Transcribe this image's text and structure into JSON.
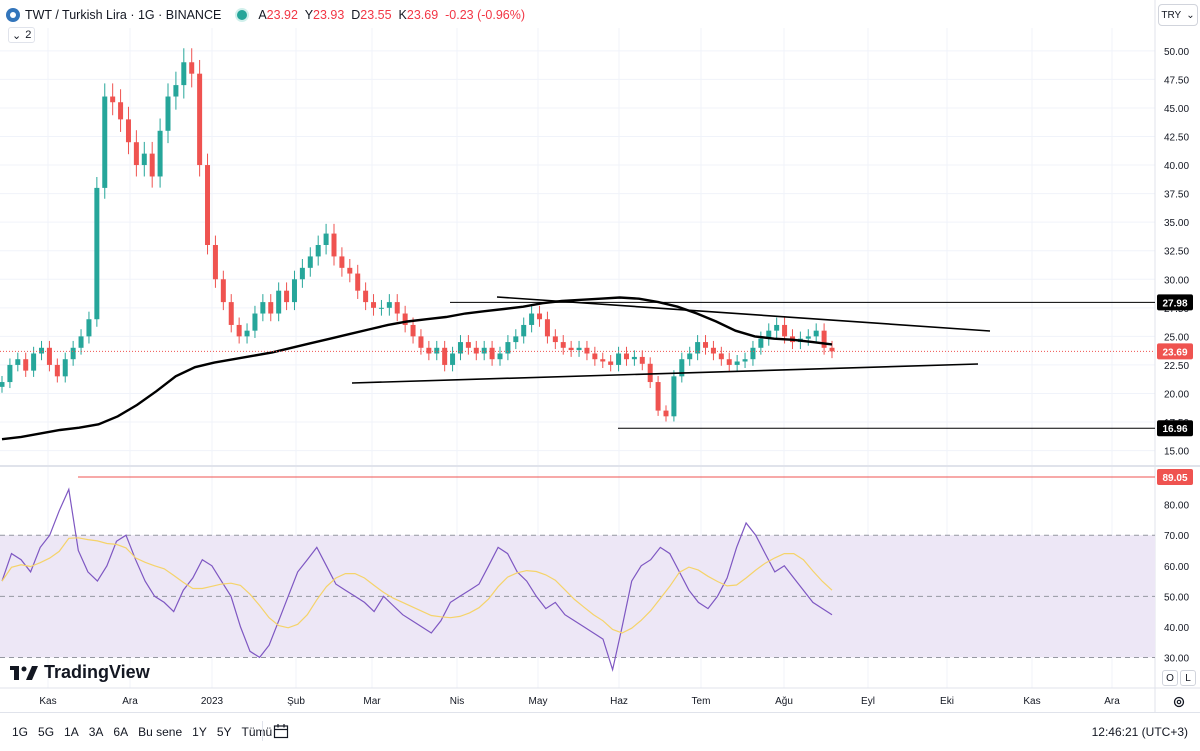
{
  "header": {
    "symbol": "TWT / Turkish Lira · 1G · BINANCE",
    "o_label": "A",
    "o_value": "23.92",
    "h_label": "Y",
    "h_value": "23.93",
    "l_label": "D",
    "l_value": "23.55",
    "c_label": "K",
    "c_value": "23.69",
    "change": "-0.23 (-0.96%)",
    "indicator_count": "2",
    "currency": "TRY"
  },
  "chart_data": {
    "type": "candlestick",
    "price_axis": {
      "ticks": [
        "50.00",
        "47.50",
        "45.00",
        "42.50",
        "40.00",
        "37.50",
        "35.00",
        "32.50",
        "30.00",
        "27.50",
        "25.00",
        "22.50",
        "20.00",
        "17.50",
        "15.00"
      ],
      "range": [
        14.0,
        52.0
      ]
    },
    "rsi_axis": {
      "ticks": [
        "80.00",
        "70.00",
        "60.00",
        "50.00",
        "40.00",
        "30.00"
      ],
      "range": [
        20,
        92
      ],
      "band": [
        30,
        70
      ]
    },
    "time_axis": [
      "Kas",
      "Ara",
      "2023",
      "Şub",
      "Mar",
      "Nis",
      "May",
      "Haz",
      "Tem",
      "Ağu",
      "Eyl",
      "Eki",
      "Kas",
      "Ara"
    ],
    "price_labels": {
      "resistance": "27.98",
      "current": "23.69",
      "support": "16.96",
      "rsi_level": "89.05"
    },
    "horizontal_levels": {
      "resistance": 27.98,
      "support": 16.96,
      "rsi_level": 89.05
    },
    "close_series": [
      21,
      22.5,
      23,
      22,
      23.5,
      24,
      22.5,
      21.5,
      23,
      24,
      25,
      26.5,
      38,
      46,
      45.5,
      44,
      42,
      40,
      41,
      39,
      43,
      46,
      47,
      49,
      48,
      40,
      33,
      30,
      28,
      26,
      25,
      25.5,
      27,
      28,
      27,
      29,
      28,
      30,
      31,
      32,
      33,
      34,
      32,
      31,
      30.5,
      29,
      28,
      27.5,
      27.5,
      28,
      27,
      26,
      25,
      24,
      23.5,
      24,
      22.5,
      23.5,
      24.5,
      24,
      23.5,
      24,
      23,
      23.5,
      24.5,
      25,
      26,
      27,
      26.5,
      25,
      24.5,
      24,
      23.8,
      24,
      23.5,
      23,
      22.8,
      22.5,
      23.5,
      23,
      23.2,
      22.6,
      21,
      18.5,
      18,
      21.5,
      23,
      23.5,
      24.5,
      24,
      23.5,
      23,
      22.5,
      22.8,
      23,
      24,
      24.8,
      25.5,
      26,
      25,
      24.5,
      24.8,
      25,
      25.5,
      24,
      23.69
    ],
    "ma_series": [
      16,
      16.2,
      16.5,
      16.8,
      17,
      17.3,
      18,
      19,
      20.2,
      21.5,
      22.3,
      22.7,
      23,
      23.3,
      23.6,
      24,
      24.4,
      24.8,
      25.2,
      25.6,
      26,
      26.3,
      26.5,
      26.7,
      27,
      27.2,
      27.4,
      27.6,
      27.9,
      28.1,
      28.2,
      28.3,
      28.4,
      28.3,
      28,
      27.6,
      27,
      26.3,
      25.5,
      25,
      24.8,
      24.7,
      24.5,
      24.3
    ],
    "rsi_series": [
      55,
      64,
      62,
      58,
      66,
      70,
      78,
      85,
      65,
      58,
      55,
      60,
      68,
      70,
      62,
      55,
      50,
      48,
      45,
      52,
      56,
      62,
      60,
      55,
      50,
      40,
      32,
      30,
      34,
      42,
      50,
      58,
      62,
      66,
      60,
      54,
      52,
      50,
      48,
      45,
      50,
      47,
      44,
      42,
      40,
      38,
      42,
      48,
      50,
      52,
      54,
      60,
      66,
      64,
      58,
      55,
      50,
      46,
      48,
      44,
      42,
      40,
      38,
      36,
      26,
      40,
      55,
      60,
      62,
      66,
      64,
      58,
      52,
      48,
      46,
      50,
      56,
      66,
      74,
      70,
      64,
      58,
      60,
      56,
      52,
      48,
      46,
      44
    ]
  },
  "bottom_bar": {
    "ranges": [
      "1G",
      "5G",
      "1A",
      "3A",
      "6A",
      "Bu sene",
      "1Y",
      "5Y",
      "Tümü"
    ],
    "clock": "12:46:21 (UTC+3)"
  },
  "brand": {
    "name": "TradingView"
  },
  "scale_buttons": {
    "o": "O",
    "l": "L"
  },
  "colors": {
    "up": "#26a69a",
    "down": "#ef5350",
    "rsi_line": "#7e57c2",
    "rsi_ma": "#f5d36a",
    "band": "#ede7f6",
    "ma": "#000000",
    "accent_red": "#f23645"
  }
}
